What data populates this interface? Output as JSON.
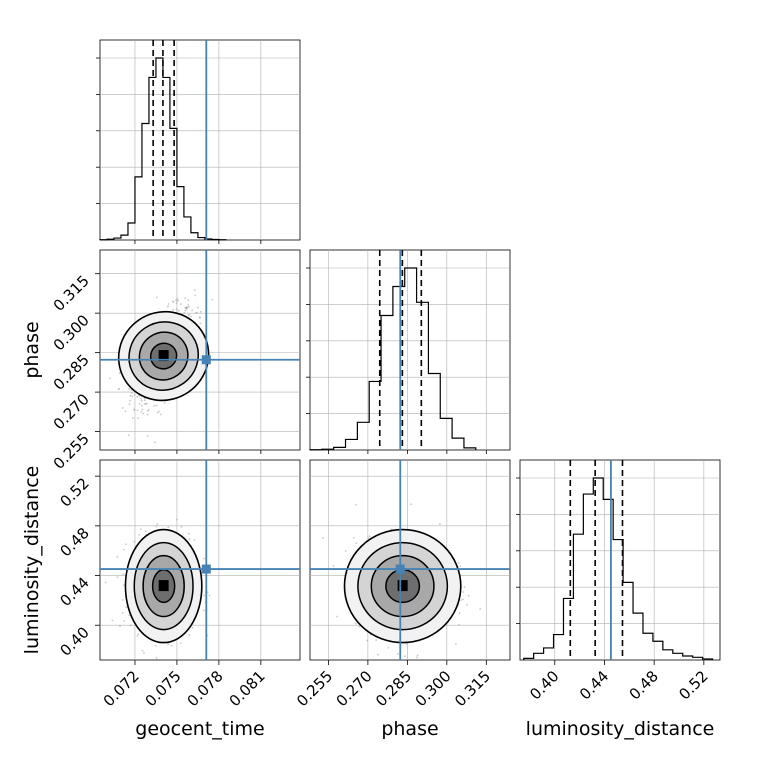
{
  "chart_data": {
    "type": "corner",
    "parameters": [
      "geocent_time",
      "phase",
      "luminosity_distance"
    ],
    "axis_labels": {
      "geocent_time": "geocent_time",
      "phase": "phase",
      "luminosity_distance": "luminosity_distance"
    },
    "ticks": {
      "geocent_time": [
        "0.072",
        "0.075",
        "0.078",
        "0.081"
      ],
      "phase": [
        "0.255",
        "0.270",
        "0.285",
        "0.300",
        "0.315"
      ],
      "luminosity_distance": [
        "0.40",
        "0.44",
        "0.48",
        "0.52"
      ]
    },
    "truths": {
      "geocent_time": 0.0771,
      "phase": 0.2823,
      "luminosity_distance": 0.4452
    },
    "marginals": {
      "geocent_time": {
        "quantiles": [
          0.0733,
          0.074,
          0.0748
        ],
        "bins": [
          0.0695,
          0.07,
          0.0705,
          0.071,
          0.0715,
          0.072,
          0.0725,
          0.073,
          0.0735,
          0.074,
          0.0745,
          0.075,
          0.0755,
          0.076,
          0.0765,
          0.077,
          0.0775,
          0.078,
          0.0785
        ],
        "counts": [
          1,
          3,
          8,
          20,
          70,
          260,
          480,
          670,
          750,
          670,
          460,
          220,
          95,
          30,
          10,
          4,
          2,
          1
        ]
      },
      "phase": {
        "quantiles": [
          0.2745,
          0.2831,
          0.2903
        ],
        "bins": [
          0.248,
          0.2525,
          0.257,
          0.2615,
          0.266,
          0.2705,
          0.275,
          0.2795,
          0.284,
          0.2885,
          0.293,
          0.2975,
          0.302,
          0.3065,
          0.311
        ],
        "counts": [
          1,
          3,
          10,
          40,
          105,
          260,
          510,
          620,
          690,
          560,
          290,
          120,
          45,
          8
        ]
      },
      "luminosity_distance": {
        "quantiles": [
          0.4125,
          0.4325,
          0.4545
        ],
        "bins": [
          0.375,
          0.383,
          0.391,
          0.399,
          0.407,
          0.415,
          0.423,
          0.431,
          0.439,
          0.447,
          0.455,
          0.463,
          0.471,
          0.479,
          0.487,
          0.495,
          0.503,
          0.511,
          0.519,
          0.527
        ],
        "counts": [
          6,
          25,
          45,
          95,
          230,
          470,
          620,
          680,
          600,
          450,
          290,
          175,
          100,
          70,
          38,
          25,
          15,
          10,
          4
        ]
      }
    },
    "joint": [
      {
        "x": "geocent_time",
        "y": "phase",
        "center": [
          0.07405,
          0.2837
        ],
        "sigma": [
          0.00105,
          0.0085
        ],
        "corr": 0.55
      },
      {
        "x": "geocent_time",
        "y": "luminosity_distance",
        "center": [
          0.07405,
          0.4315
        ],
        "sigma": [
          0.00105,
          0.0175
        ],
        "corr": 0.0
      },
      {
        "x": "phase",
        "y": "luminosity_distance",
        "center": [
          0.2832,
          0.4315
        ],
        "sigma": [
          0.0085,
          0.0175
        ],
        "corr": 0.0
      }
    ],
    "ranges": {
      "geocent_time": [
        0.0695,
        0.0838
      ],
      "phase": [
        0.248,
        0.324
      ],
      "luminosity_distance": [
        0.372,
        0.533
      ]
    },
    "grid": true,
    "colors": {
      "truth": "#4682b4",
      "hist": "#000000",
      "points": "#9a9a9a"
    }
  }
}
